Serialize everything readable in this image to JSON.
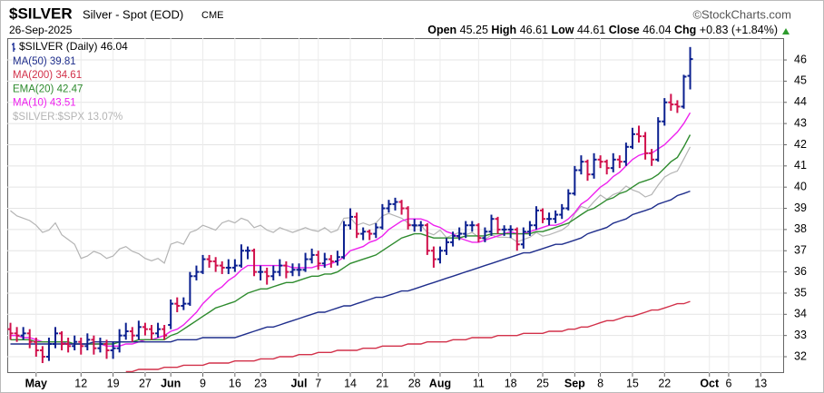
{
  "chart_data": {
    "type": "ohlc",
    "symbol": "$SILVER",
    "description": "Silver - Spot (EOD)",
    "exchange": "CME",
    "copyright": "©StockCharts.com",
    "date": "26-Sep-2025",
    "quote_labels": [
      "Open",
      "High",
      "Low",
      "Close",
      "Chg"
    ],
    "change_label": "+0.83",
    "change_pct_label": "(+1.84%)",
    "price_name": "$SILVER (Daily)",
    "up_color": "#0a1f8f",
    "down_color": "#d0104c",
    "grid": true,
    "ylim": [
      31.23,
      47.03
    ],
    "yticks": [
      32,
      33,
      34,
      35,
      36,
      37,
      38,
      39,
      40,
      41,
      42,
      43,
      44,
      45,
      46
    ],
    "y2lim": [
      -34.75,
      36.1
    ],
    "categories": [
      null,
      null,
      null,
      null,
      "May",
      null,
      null,
      null,
      null,
      null,
      null,
      "12",
      null,
      null,
      null,
      null,
      "19",
      null,
      null,
      null,
      null,
      "27",
      null,
      null,
      null,
      "Jun",
      null,
      null,
      null,
      null,
      "9",
      null,
      null,
      null,
      null,
      "16",
      null,
      null,
      null,
      "23",
      null,
      null,
      null,
      null,
      null,
      "Jul",
      null,
      null,
      "7",
      null,
      null,
      null,
      null,
      "14",
      null,
      null,
      null,
      null,
      "21",
      null,
      null,
      null,
      null,
      "28",
      null,
      null,
      null,
      "Aug",
      null,
      null,
      null,
      null,
      null,
      "11",
      null,
      null,
      null,
      null,
      "18",
      null,
      null,
      null,
      null,
      "25",
      null,
      null,
      null,
      null,
      "Sep",
      null,
      null,
      null,
      "8",
      null,
      null,
      null,
      null,
      "15",
      null,
      null,
      null,
      null,
      "22",
      null,
      null,
      null,
      null,
      null,
      null,
      "Oct",
      null,
      null,
      "6",
      null,
      null,
      null,
      null,
      "13",
      null,
      null,
      null
    ],
    "open": [
      33.3,
      33.1,
      33.0,
      33.1,
      32.7,
      32.3,
      32.0,
      32.6,
      33.1,
      32.6,
      32.5,
      32.7,
      32.5,
      32.8,
      32.4,
      32.6,
      32.3,
      32.4,
      33.0,
      33.2,
      33.0,
      33.4,
      33.3,
      33.1,
      33.3,
      33.5,
      34.5,
      34.4,
      34.5,
      35.8,
      36.0,
      36.6,
      36.5,
      36.3,
      36.2,
      36.2,
      36.3,
      37.0,
      37.0,
      36.0,
      36.0,
      35.8,
      36.0,
      36.3,
      36.0,
      36.1,
      36.1,
      36.6,
      36.8,
      36.4,
      36.6,
      36.5,
      36.7,
      38.2,
      38.6,
      37.8,
      37.9,
      37.8,
      38.1,
      39.0,
      39.2,
      39.3,
      39.0,
      38.2,
      38.2,
      38.2,
      37.0,
      36.6,
      37.0,
      37.4,
      37.7,
      37.8,
      38.2,
      38.2,
      37.6,
      37.9,
      38.5,
      38.0,
      38.0,
      38.0,
      37.3,
      37.9,
      38.2,
      38.9,
      38.5,
      38.5,
      38.7,
      39.0,
      39.7,
      40.8,
      41.2,
      40.6,
      41.3,
      41.2,
      40.9,
      41.3,
      41.2,
      41.9,
      42.5,
      42.4,
      41.6,
      41.3,
      43.1,
      44.0,
      43.9,
      43.8,
      45.25,
      null,
      null,
      null,
      null,
      null,
      null,
      null,
      null,
      null,
      null,
      null,
      null,
      null,
      null
    ],
    "high": [
      33.6,
      33.4,
      33.4,
      33.3,
      32.9,
      32.5,
      32.9,
      33.4,
      33.2,
      32.9,
      33.0,
      32.9,
      33.1,
      33.0,
      32.9,
      32.8,
      32.7,
      33.3,
      33.6,
      33.4,
      33.7,
      33.6,
      33.5,
      33.6,
      33.5,
      34.7,
      34.8,
      34.8,
      36.0,
      36.3,
      36.8,
      36.8,
      36.7,
      36.5,
      36.6,
      36.6,
      37.3,
      37.2,
      37.1,
      36.3,
      36.2,
      36.3,
      36.6,
      36.5,
      36.4,
      36.4,
      36.9,
      37.1,
      37.0,
      36.9,
      36.8,
      37.0,
      38.4,
      39.0,
      38.8,
      38.1,
      38.0,
      38.3,
      39.2,
      39.4,
      39.5,
      39.4,
      39.1,
      38.5,
      38.4,
      38.3,
      37.2,
      37.2,
      37.6,
      37.9,
      38.1,
      38.4,
      38.4,
      38.3,
      38.1,
      38.7,
      38.6,
      38.2,
      38.2,
      38.1,
      38.1,
      38.4,
      39.1,
      39.0,
      38.8,
      38.9,
      39.2,
      39.9,
      41.0,
      41.5,
      41.3,
      41.6,
      41.5,
      41.3,
      41.6,
      41.5,
      42.1,
      42.8,
      42.9,
      42.6,
      41.8,
      43.3,
      44.2,
      44.4,
      44.1,
      45.3,
      46.61,
      null,
      null,
      null,
      null,
      null,
      null,
      null,
      null,
      null,
      null,
      null,
      null,
      null,
      null
    ],
    "low": [
      32.8,
      32.7,
      32.8,
      32.4,
      32.0,
      31.7,
      31.8,
      32.4,
      32.3,
      32.2,
      32.3,
      32.1,
      32.3,
      32.1,
      32.2,
      31.9,
      31.9,
      32.2,
      32.8,
      32.7,
      32.8,
      33.0,
      32.8,
      32.9,
      32.8,
      33.3,
      34.1,
      34.2,
      34.4,
      35.6,
      35.9,
      36.2,
      36.0,
      35.9,
      35.9,
      36.0,
      36.2,
      36.6,
      35.8,
      35.6,
      35.4,
      35.6,
      35.8,
      35.7,
      35.8,
      35.8,
      36.0,
      36.4,
      36.1,
      36.2,
      36.2,
      36.3,
      36.6,
      38.0,
      37.6,
      37.5,
      37.5,
      37.6,
      38.0,
      38.8,
      38.9,
      38.7,
      38.0,
      37.9,
      37.9,
      36.8,
      36.2,
      36.4,
      36.8,
      37.2,
      37.5,
      37.6,
      37.9,
      37.4,
      37.4,
      37.7,
      37.8,
      37.7,
      37.6,
      37.0,
      37.1,
      37.7,
      38.0,
      38.3,
      38.2,
      38.3,
      38.5,
      38.9,
      39.6,
      40.6,
      40.3,
      40.4,
      40.9,
      40.6,
      40.7,
      40.9,
      41.0,
      41.8,
      42.1,
      41.3,
      41.0,
      41.2,
      42.9,
      43.6,
      43.5,
      43.7,
      44.61,
      null,
      null,
      null,
      null,
      null,
      null,
      null,
      null,
      null,
      null,
      null,
      null,
      null,
      null
    ],
    "close": [
      33.1,
      33.0,
      33.1,
      32.7,
      32.3,
      32.0,
      32.6,
      33.1,
      32.6,
      32.5,
      32.7,
      32.5,
      32.8,
      32.4,
      32.6,
      32.3,
      32.4,
      33.0,
      33.2,
      33.0,
      33.4,
      33.3,
      33.1,
      33.3,
      33.0,
      34.5,
      34.4,
      34.5,
      35.8,
      36.0,
      36.6,
      36.5,
      36.3,
      36.2,
      36.2,
      36.3,
      37.0,
      37.0,
      36.0,
      36.0,
      35.8,
      36.0,
      36.3,
      36.0,
      36.1,
      36.1,
      36.6,
      36.8,
      36.4,
      36.6,
      36.5,
      36.7,
      38.2,
      38.6,
      37.8,
      37.9,
      37.8,
      38.1,
      39.0,
      39.2,
      39.3,
      39.0,
      38.2,
      38.2,
      38.2,
      37.0,
      36.6,
      37.0,
      37.4,
      37.7,
      37.8,
      38.2,
      38.2,
      37.6,
      37.9,
      38.5,
      38.0,
      38.0,
      38.0,
      37.3,
      37.9,
      38.2,
      38.9,
      38.5,
      38.5,
      38.7,
      39.0,
      39.7,
      40.8,
      41.2,
      40.6,
      41.3,
      41.2,
      40.9,
      41.3,
      41.2,
      41.9,
      42.5,
      42.4,
      41.6,
      41.3,
      43.1,
      44.0,
      43.9,
      43.8,
      45.21,
      46.04,
      null,
      null,
      null,
      null,
      null,
      null,
      null,
      null,
      null,
      null,
      null,
      null,
      null,
      null
    ],
    "overlays": [
      {
        "name": "MA(50)",
        "color": "#1f2e8c",
        "values": [
          32.6,
          32.6,
          32.6,
          32.6,
          32.6,
          32.6,
          32.6,
          32.6,
          32.6,
          32.6,
          32.6,
          32.6,
          32.6,
          32.7,
          32.7,
          32.7,
          32.7,
          32.7,
          32.7,
          32.7,
          32.7,
          32.7,
          32.7,
          32.7,
          32.7,
          32.7,
          32.8,
          32.8,
          32.8,
          32.8,
          32.9,
          32.9,
          32.9,
          32.9,
          32.9,
          32.9,
          33.0,
          33.1,
          33.2,
          33.3,
          33.4,
          33.4,
          33.5,
          33.6,
          33.7,
          33.8,
          33.9,
          34.0,
          34.1,
          34.1,
          34.2,
          34.3,
          34.4,
          34.4,
          34.5,
          34.6,
          34.7,
          34.8,
          34.8,
          34.9,
          35.0,
          35.1,
          35.1,
          35.2,
          35.3,
          35.4,
          35.5,
          35.6,
          35.7,
          35.8,
          35.9,
          36.0,
          36.1,
          36.2,
          36.3,
          36.4,
          36.5,
          36.6,
          36.7,
          36.8,
          36.9,
          36.9,
          37.0,
          37.1,
          37.2,
          37.3,
          37.3,
          37.4,
          37.5,
          37.6,
          37.8,
          37.9,
          38.0,
          38.1,
          38.3,
          38.4,
          38.5,
          38.7,
          38.8,
          38.9,
          39.0,
          39.2,
          39.3,
          39.4,
          39.6,
          39.7,
          39.81,
          null,
          null,
          null,
          null,
          null,
          null,
          null,
          null,
          null,
          null,
          null,
          null,
          null,
          null
        ]
      },
      {
        "name": "MA(200)",
        "color": "#d2314a",
        "values": [
          null,
          null,
          null,
          null,
          null,
          null,
          null,
          null,
          null,
          null,
          null,
          null,
          null,
          null,
          null,
          null,
          null,
          null,
          31.3,
          31.3,
          31.4,
          31.4,
          31.4,
          31.4,
          31.5,
          31.5,
          31.5,
          31.6,
          31.6,
          31.6,
          31.6,
          31.7,
          31.7,
          31.7,
          31.7,
          31.8,
          31.8,
          31.8,
          31.8,
          31.9,
          31.9,
          31.9,
          32.0,
          32.0,
          32.0,
          32.1,
          32.1,
          32.1,
          32.2,
          32.2,
          32.2,
          32.3,
          32.3,
          32.3,
          32.3,
          32.4,
          32.4,
          32.4,
          32.5,
          32.5,
          32.5,
          32.5,
          32.6,
          32.6,
          32.6,
          32.7,
          32.7,
          32.7,
          32.7,
          32.8,
          32.8,
          32.8,
          32.9,
          32.9,
          32.9,
          32.9,
          33.0,
          33.0,
          33.0,
          33.0,
          33.1,
          33.1,
          33.1,
          33.1,
          33.2,
          33.2,
          33.2,
          33.3,
          33.3,
          33.4,
          33.4,
          33.5,
          33.6,
          33.7,
          33.7,
          33.8,
          33.9,
          33.9,
          34.0,
          34.1,
          34.2,
          34.2,
          34.3,
          34.4,
          34.5,
          34.5,
          34.61,
          null,
          null,
          null,
          null,
          null,
          null,
          null,
          null,
          null,
          null,
          null,
          null,
          null,
          null
        ]
      },
      {
        "name": "EMA(20)",
        "color": "#2e8b2e",
        "values": [
          32.8,
          32.8,
          32.8,
          32.8,
          32.7,
          32.7,
          32.7,
          32.7,
          32.7,
          32.7,
          32.6,
          32.6,
          32.6,
          32.6,
          32.6,
          32.6,
          32.6,
          32.7,
          32.7,
          32.7,
          32.8,
          32.8,
          32.8,
          32.8,
          32.8,
          33.0,
          33.1,
          33.3,
          33.5,
          33.7,
          33.9,
          34.1,
          34.3,
          34.4,
          34.5,
          34.6,
          34.8,
          35.0,
          35.1,
          35.2,
          35.2,
          35.3,
          35.4,
          35.5,
          35.5,
          35.6,
          35.7,
          35.8,
          35.8,
          35.9,
          35.9,
          36.0,
          36.2,
          36.4,
          36.5,
          36.6,
          36.7,
          36.8,
          37.0,
          37.2,
          37.4,
          37.6,
          37.7,
          37.8,
          37.8,
          37.7,
          37.6,
          37.6,
          37.6,
          37.6,
          37.6,
          37.7,
          37.7,
          37.7,
          37.7,
          37.8,
          37.8,
          37.8,
          37.8,
          37.8,
          37.8,
          37.8,
          37.9,
          37.9,
          38.0,
          38.1,
          38.2,
          38.3,
          38.5,
          38.7,
          38.9,
          39.0,
          39.2,
          39.4,
          39.5,
          39.7,
          39.8,
          40.0,
          40.2,
          40.3,
          40.4,
          40.6,
          40.9,
          41.2,
          41.4,
          41.9,
          42.47,
          null,
          null,
          null,
          null,
          null,
          null,
          null,
          null,
          null,
          null,
          null,
          null,
          null,
          null
        ]
      },
      {
        "name": "MA(10)",
        "color": "#ee22ee",
        "values": [
          33.0,
          33.0,
          32.9,
          32.9,
          32.8,
          32.7,
          32.7,
          32.7,
          32.7,
          32.6,
          32.6,
          32.6,
          32.6,
          32.6,
          32.6,
          32.5,
          32.5,
          32.5,
          32.6,
          32.6,
          32.7,
          32.8,
          32.8,
          32.9,
          33.0,
          33.2,
          33.3,
          33.5,
          33.8,
          34.1,
          34.5,
          34.8,
          35.1,
          35.3,
          35.6,
          35.8,
          36.1,
          36.3,
          36.3,
          36.3,
          36.3,
          36.3,
          36.3,
          36.3,
          36.2,
          36.2,
          36.2,
          36.2,
          36.3,
          36.3,
          36.4,
          36.5,
          36.7,
          37.0,
          37.1,
          37.2,
          37.4,
          37.5,
          37.7,
          38.0,
          38.2,
          38.4,
          38.5,
          38.5,
          38.5,
          38.4,
          38.2,
          38.1,
          37.9,
          37.8,
          37.6,
          37.5,
          37.4,
          37.4,
          37.5,
          37.6,
          37.7,
          37.8,
          37.9,
          37.8,
          37.8,
          37.9,
          38.0,
          38.1,
          38.2,
          38.2,
          38.3,
          38.5,
          38.8,
          39.2,
          39.4,
          39.7,
          40.0,
          40.2,
          40.5,
          40.7,
          41.0,
          41.3,
          41.5,
          41.6,
          41.6,
          41.8,
          42.0,
          42.3,
          42.6,
          43.0,
          43.51,
          null,
          null,
          null,
          null,
          null,
          null,
          null,
          null,
          null,
          null,
          null,
          null,
          null,
          null
        ]
      },
      {
        "name": "$SILVER:$SPX",
        "color": "#b4b4b4",
        "axis": "y2",
        "last_label": "13.07%",
        "values": [
          -0.4,
          -1.5,
          -2.0,
          -2.5,
          -3.5,
          -5.0,
          -4.5,
          -3.0,
          -5.5,
          -6.5,
          -7.5,
          -10.5,
          -10.0,
          -9.0,
          -9.5,
          -10.5,
          -10.0,
          -8.5,
          -8.0,
          -9.0,
          -9.5,
          -10.5,
          -11.0,
          -10.5,
          -11.5,
          -7.5,
          -7.0,
          -7.5,
          -5.0,
          -4.5,
          -3.5,
          -4.0,
          -4.5,
          -3.0,
          -2.5,
          -3.0,
          -2.0,
          -2.5,
          -4.0,
          -3.5,
          -4.5,
          -5.0,
          -4.0,
          -4.5,
          -5.0,
          -4.5,
          -4.0,
          -4.5,
          -4.8,
          -4.0,
          -5.0,
          -4.5,
          -2.0,
          -1.9,
          -3.5,
          -3.0,
          -3.5,
          -3.0,
          -1.5,
          -1.0,
          -1.5,
          -2.0,
          -3.0,
          -3.8,
          -3.5,
          -5.0,
          -5.5,
          -4.5,
          -6.1,
          -5.5,
          -5.0,
          -5.5,
          -5.0,
          -6.0,
          -6.5,
          -5.5,
          -6.0,
          -6.0,
          -6.1,
          -7.0,
          -6.5,
          -6.0,
          -5.0,
          -5.8,
          -5.5,
          -5.0,
          -4.5,
          -3.5,
          -1.0,
          0.5,
          0.0,
          1.5,
          2.9,
          2.0,
          3.0,
          3.5,
          4.8,
          4.0,
          3.5,
          2.5,
          3.0,
          5.0,
          6.7,
          7.5,
          8.0,
          10.5,
          13.07,
          null,
          null,
          null,
          null,
          null,
          null,
          null,
          null,
          null,
          null,
          null,
          null,
          null,
          null
        ]
      }
    ]
  }
}
